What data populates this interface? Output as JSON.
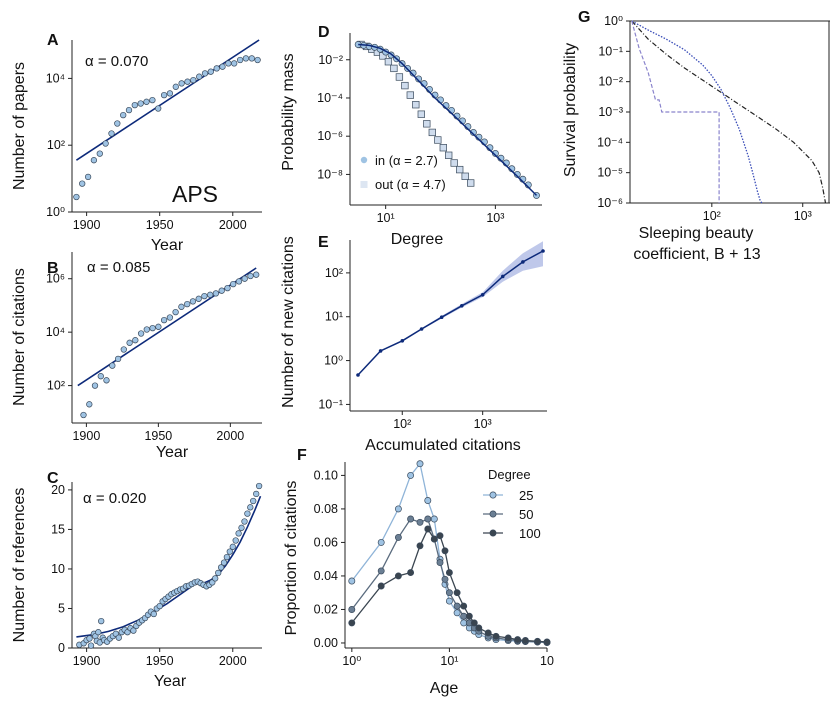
{
  "colors": {
    "fit": "#0d2a7a",
    "marker_fill": "#9fc3e3",
    "marker_edge": "#3a4a5c",
    "square_fill": "#cfdced",
    "band": "#aab6e3",
    "aps": "#1f77b4",
    "deg25": "#9fc3e3",
    "deg50": "#6b7f94",
    "deg100": "#3a4550",
    "survival_black": "#222222",
    "survival_blue": "#3a4db8",
    "survival_dashed": "#8a84cc"
  },
  "chart_data": [
    {
      "id": "A",
      "type": "scatter",
      "panel_label": "A",
      "xlabel": "Year",
      "ylabel": "Number of papers",
      "xlim": [
        1890,
        2020
      ],
      "ylim_log10": [
        0,
        5.15
      ],
      "x_ticks": [
        1900,
        1950,
        2000
      ],
      "y_ticks": [
        {
          "v": 0,
          "label": "10⁰"
        },
        {
          "v": 2,
          "label": "10²"
        },
        {
          "v": 4,
          "label": "10⁴"
        }
      ],
      "annotation": "α = 0.070",
      "brand": "APS",
      "fit_log10": {
        "x": [
          1893,
          2018
        ],
        "y": [
          1.55,
          5.15
        ]
      },
      "x": [
        1893,
        1897,
        1901,
        1905,
        1909,
        1913,
        1917,
        1921,
        1925,
        1929,
        1933,
        1937,
        1941,
        1945,
        1949,
        1953,
        1957,
        1961,
        1965,
        1969,
        1973,
        1977,
        1981,
        1985,
        1989,
        1993,
        1997,
        2001,
        2005,
        2009,
        2013,
        2017
      ],
      "y_log10": [
        0.45,
        0.85,
        1.05,
        1.55,
        1.75,
        2.05,
        2.35,
        2.65,
        2.9,
        3.05,
        3.2,
        3.25,
        3.3,
        3.35,
        3.1,
        3.5,
        3.55,
        3.75,
        3.85,
        3.9,
        3.95,
        4.05,
        4.15,
        4.2,
        4.3,
        4.35,
        4.45,
        4.45,
        4.55,
        4.6,
        4.6,
        4.55
      ]
    },
    {
      "id": "B",
      "type": "scatter",
      "panel_label": "B",
      "xlabel": "Year",
      "ylabel": "Number of citations",
      "xlim": [
        1890,
        2022
      ],
      "ylim_log10": [
        0.6,
        7.0
      ],
      "x_ticks": [
        1900,
        1950,
        2000
      ],
      "y_ticks": [
        {
          "v": 2,
          "label": "10²"
        },
        {
          "v": 4,
          "label": "10⁴"
        },
        {
          "v": 6,
          "label": "10⁶"
        }
      ],
      "annotation": "α = 0.085",
      "fit_log10": {
        "x": [
          1894,
          2018
        ],
        "y": [
          2.0,
          6.4
        ]
      },
      "x": [
        1898,
        1902,
        1906,
        1910,
        1914,
        1918,
        1922,
        1926,
        1930,
        1934,
        1938,
        1942,
        1946,
        1950,
        1954,
        1958,
        1962,
        1966,
        1970,
        1974,
        1978,
        1982,
        1986,
        1990,
        1994,
        1998,
        2002,
        2006,
        2010,
        2014,
        2018
      ],
      "y_log10": [
        0.9,
        1.3,
        2.0,
        2.35,
        2.2,
        2.75,
        3.0,
        3.35,
        3.6,
        3.7,
        3.95,
        4.1,
        4.15,
        4.2,
        4.45,
        4.55,
        4.75,
        4.95,
        5.05,
        5.15,
        5.25,
        5.35,
        5.4,
        5.45,
        5.55,
        5.65,
        5.8,
        5.9,
        6.0,
        6.1,
        6.15
      ]
    },
    {
      "id": "C",
      "type": "scatter",
      "panel_label": "C",
      "xlabel": "Year",
      "ylabel": "Number of references",
      "xlim": [
        1890,
        2020
      ],
      "ylim": [
        0,
        21
      ],
      "x_ticks": [
        1900,
        1950,
        2000
      ],
      "y_ticks": [
        0,
        5,
        10,
        15,
        20
      ],
      "annotation": "α = 0.020",
      "fit": {
        "x": [
          1893,
          1905,
          1915,
          1925,
          1935,
          1945,
          1955,
          1965,
          1975,
          1980,
          1985,
          1990,
          1995,
          2000,
          2005,
          2010,
          2015,
          2019
        ],
        "y": [
          1.4,
          1.7,
          2.1,
          2.7,
          3.5,
          4.5,
          5.6,
          6.9,
          8.2,
          8.2,
          8.6,
          9.3,
          10.4,
          11.8,
          13.4,
          15.3,
          17.4,
          19.2
        ]
      },
      "x": [
        1895,
        1898,
        1900,
        1902,
        1903,
        1905,
        1906,
        1907,
        1908,
        1909,
        1910,
        1911,
        1912,
        1914,
        1916,
        1918,
        1920,
        1922,
        1924,
        1926,
        1928,
        1930,
        1932,
        1934,
        1936,
        1938,
        1940,
        1942,
        1944,
        1946,
        1948,
        1950,
        1952,
        1954,
        1956,
        1958,
        1960,
        1962,
        1964,
        1966,
        1968,
        1970,
        1972,
        1974,
        1976,
        1978,
        1980,
        1982,
        1984,
        1986,
        1988,
        1990,
        1992,
        1994,
        1996,
        1998,
        2000,
        2002,
        2004,
        2006,
        2008,
        2010,
        2012,
        2014,
        2016,
        2018
      ],
      "y": [
        0.4,
        0.6,
        1.0,
        1.2,
        0.3,
        1.8,
        1.5,
        0.9,
        2.0,
        0.7,
        3.4,
        1.3,
        1.0,
        0.8,
        1.2,
        1.5,
        1.8,
        1.3,
        2.0,
        2.3,
        2.0,
        2.5,
        2.2,
        2.8,
        3.2,
        3.5,
        3.8,
        4.2,
        4.6,
        4.3,
        5.0,
        5.3,
        5.9,
        6.2,
        6.5,
        6.8,
        7.0,
        7.2,
        7.4,
        7.5,
        7.8,
        7.9,
        8.1,
        8.3,
        8.4,
        8.2,
        8.0,
        7.8,
        8.0,
        8.3,
        8.8,
        9.5,
        10.2,
        10.8,
        11.5,
        12.2,
        12.8,
        13.6,
        14.5,
        15.2,
        16.0,
        17.0,
        17.8,
        18.6,
        19.5,
        20.5
      ]
    },
    {
      "id": "D",
      "type": "scatter",
      "panel_label": "D",
      "xlabel": "Degree",
      "ylabel": "Probability mass",
      "xlim_log10": [
        0.35,
        3.85
      ],
      "ylim_log10": [
        -9.6,
        -0.6
      ],
      "x_ticks": [
        {
          "v": 1,
          "label": "10¹"
        },
        {
          "v": 3,
          "label": "10³"
        }
      ],
      "y_ticks": [
        {
          "v": -2,
          "label": "10⁻²"
        },
        {
          "v": -4,
          "label": "10⁻⁴"
        },
        {
          "v": -6,
          "label": "10⁻⁶"
        },
        {
          "v": -8,
          "label": "10⁻⁸"
        }
      ],
      "legend": [
        {
          "label": "in (α = 2.7)",
          "marker": "circle"
        },
        {
          "label": "out (α = 4.7)",
          "marker": "square"
        }
      ],
      "fit_log10": {
        "x": [
          0.5,
          0.7,
          0.9,
          1.1,
          1.3,
          1.5,
          1.7,
          1.9,
          2.2,
          2.6,
          3.0,
          3.4,
          3.75
        ],
        "y": [
          -1.2,
          -1.25,
          -1.4,
          -1.7,
          -2.2,
          -2.8,
          -3.4,
          -4.0,
          -4.8,
          -5.9,
          -7.0,
          -8.1,
          -9.1
        ]
      },
      "in_series": {
        "x_log10": [
          0.5,
          0.6,
          0.7,
          0.8,
          0.9,
          1.0,
          1.1,
          1.2,
          1.3,
          1.4,
          1.5,
          1.6,
          1.7,
          1.8,
          1.9,
          2.0,
          2.1,
          2.2,
          2.3,
          2.4,
          2.5,
          2.6,
          2.7,
          2.8,
          2.9,
          3.0,
          3.1,
          3.2,
          3.3,
          3.4,
          3.5,
          3.6,
          3.75
        ],
        "y_log10": [
          -1.2,
          -1.25,
          -1.3,
          -1.35,
          -1.45,
          -1.6,
          -1.75,
          -1.95,
          -2.2,
          -2.45,
          -2.7,
          -3.0,
          -3.25,
          -3.55,
          -3.85,
          -4.1,
          -4.4,
          -4.65,
          -4.95,
          -5.2,
          -5.5,
          -5.8,
          -6.05,
          -6.3,
          -6.6,
          -6.9,
          -7.15,
          -7.4,
          -7.7,
          -8.0,
          -8.25,
          -8.55,
          -9.1
        ]
      },
      "out_series": {
        "x_log10": [
          0.55,
          0.65,
          0.75,
          0.85,
          0.95,
          1.05,
          1.15,
          1.25,
          1.35,
          1.45,
          1.55,
          1.65,
          1.75,
          1.85,
          1.95,
          2.05,
          2.15,
          2.25,
          2.35,
          2.45,
          2.55
        ],
        "y_log10": [
          -1.2,
          -1.3,
          -1.45,
          -1.6,
          -1.8,
          -2.1,
          -2.45,
          -2.9,
          -3.35,
          -3.85,
          -4.35,
          -4.85,
          -5.35,
          -5.8,
          -6.2,
          -6.6,
          -7.0,
          -7.4,
          -7.75,
          -8.1,
          -8.45
        ]
      }
    },
    {
      "id": "E",
      "type": "line",
      "panel_label": "E",
      "xlabel": "Accumulated citations",
      "ylabel": "Number of new citations",
      "xlim_log10": [
        1.35,
        3.8
      ],
      "ylim_log10": [
        -1.15,
        2.75
      ],
      "x_ticks": [
        {
          "v": 2,
          "label": "10²"
        },
        {
          "v": 3,
          "label": "10³"
        }
      ],
      "y_ticks": [
        {
          "v": -1,
          "label": "10⁻¹"
        },
        {
          "v": 0,
          "label": "10⁰"
        },
        {
          "v": 1,
          "label": "10¹"
        },
        {
          "v": 2,
          "label": "10²"
        }
      ],
      "x_log10": [
        1.45,
        1.73,
        2.0,
        2.24,
        2.49,
        2.74,
        3.0,
        3.25,
        3.5,
        3.75
      ],
      "y_log10": [
        -0.33,
        0.22,
        0.45,
        0.72,
        0.99,
        1.25,
        1.5,
        1.92,
        2.25,
        2.5
      ],
      "band_lo_log10": [
        -0.33,
        0.21,
        0.43,
        0.7,
        0.96,
        1.21,
        1.45,
        1.8,
        2.05,
        2.15
      ],
      "band_hi_log10": [
        -0.33,
        0.23,
        0.47,
        0.74,
        1.02,
        1.29,
        1.56,
        2.05,
        2.45,
        2.72
      ]
    },
    {
      "id": "F",
      "type": "line",
      "panel_label": "F",
      "xlabel": "Age",
      "ylabel": "Proportion of citations",
      "xlim_log10": [
        -0.07,
        2.0
      ],
      "ylim": [
        -0.003,
        0.108
      ],
      "x_ticks": [
        {
          "v": 0,
          "label": "10⁰"
        },
        {
          "v": 1,
          "label": "10¹"
        },
        {
          "v": 2,
          "label": "10"
        }
      ],
      "y_ticks": [
        0.0,
        0.02,
        0.04,
        0.06,
        0.08,
        0.1
      ],
      "y_tick_labels": [
        "0.00",
        "0.02",
        "0.04",
        "0.06",
        "0.08",
        "0.10"
      ],
      "legend_title": "Degree",
      "series": [
        {
          "name": "25",
          "age": [
            1,
            2,
            3,
            4,
            5,
            6,
            7,
            8,
            9,
            10,
            12,
            14,
            16,
            18,
            20,
            25,
            30,
            40,
            50,
            60,
            80,
            100
          ],
          "values": [
            0.037,
            0.06,
            0.08,
            0.1,
            0.107,
            0.085,
            0.074,
            0.05,
            0.035,
            0.025,
            0.018,
            0.012,
            0.009,
            0.007,
            0.005,
            0.003,
            0.002,
            0.0015,
            0.001,
            0.0008,
            0.0005,
            0.0003
          ]
        },
        {
          "name": "50",
          "age": [
            1,
            2,
            3,
            4,
            5,
            6,
            7,
            8,
            9,
            10,
            12,
            14,
            16,
            18,
            20,
            25,
            30,
            40,
            50,
            60,
            80,
            100
          ],
          "values": [
            0.02,
            0.043,
            0.063,
            0.074,
            0.072,
            0.074,
            0.062,
            0.048,
            0.038,
            0.03,
            0.022,
            0.016,
            0.012,
            0.009,
            0.007,
            0.004,
            0.003,
            0.002,
            0.0015,
            0.001,
            0.0007,
            0.0004
          ]
        },
        {
          "name": "100",
          "age": [
            1,
            2,
            3,
            4,
            5,
            6,
            7,
            8,
            9,
            10,
            12,
            14,
            16,
            18,
            20,
            25,
            30,
            40,
            50,
            60,
            80,
            100
          ],
          "values": [
            0.012,
            0.034,
            0.04,
            0.042,
            0.058,
            0.068,
            0.062,
            0.064,
            0.055,
            0.042,
            0.03,
            0.022,
            0.016,
            0.012,
            0.009,
            0.006,
            0.004,
            0.003,
            0.002,
            0.0015,
            0.001,
            0.0006
          ]
        }
      ]
    },
    {
      "id": "G",
      "type": "line",
      "panel_label": "G",
      "xlabel": "Sleeping beauty",
      "xlabel2": "coefficient, B + 13",
      "ylabel": "Survival probability",
      "xlim_log10": [
        1.1,
        3.3
      ],
      "ylim_log10": [
        -6.0,
        0.0
      ],
      "x_ticks": [
        {
          "v": 2,
          "label": "10²"
        },
        {
          "v": 3,
          "label": "10³"
        }
      ],
      "y_ticks": [
        {
          "v": 0,
          "label": "10⁰"
        },
        {
          "v": -1,
          "label": "10⁻¹"
        },
        {
          "v": -2,
          "label": "10⁻²"
        },
        {
          "v": -3,
          "label": "10⁻³"
        },
        {
          "v": -4,
          "label": "10⁻⁴"
        },
        {
          "v": -5,
          "label": "10⁻⁵"
        },
        {
          "v": -6,
          "label": "10⁻⁶"
        }
      ],
      "series": [
        {
          "name": "dashdot-black",
          "x_log10": [
            1.12,
            1.3,
            1.5,
            1.7,
            1.9,
            2.1,
            2.3,
            2.5,
            2.7,
            2.9,
            3.0,
            3.1,
            3.18,
            3.22,
            3.25
          ],
          "y_log10": [
            0.0,
            -0.6,
            -1.1,
            -1.55,
            -1.95,
            -2.35,
            -2.75,
            -3.15,
            -3.55,
            -4.0,
            -4.3,
            -4.6,
            -5.0,
            -5.5,
            -6.0
          ]
        },
        {
          "name": "dotted-blue",
          "x_log10": [
            1.12,
            1.3,
            1.5,
            1.7,
            1.9,
            2.0,
            2.1,
            2.2,
            2.3,
            2.4,
            2.45,
            2.5,
            2.53,
            2.55
          ],
          "y_log10": [
            0.0,
            -0.3,
            -0.6,
            -0.95,
            -1.45,
            -1.8,
            -2.25,
            -2.85,
            -3.55,
            -4.45,
            -5.0,
            -5.6,
            -5.9,
            -6.0
          ]
        },
        {
          "name": "dashed-purple",
          "x_log10": [
            1.12,
            1.2,
            1.3,
            1.38,
            1.42,
            1.45,
            1.5,
            1.9,
            2.08,
            2.08
          ],
          "y_log10": [
            0.0,
            -0.9,
            -1.7,
            -2.6,
            -2.6,
            -3.0,
            -3.0,
            -3.0,
            -3.0,
            -6.0
          ]
        }
      ]
    }
  ]
}
